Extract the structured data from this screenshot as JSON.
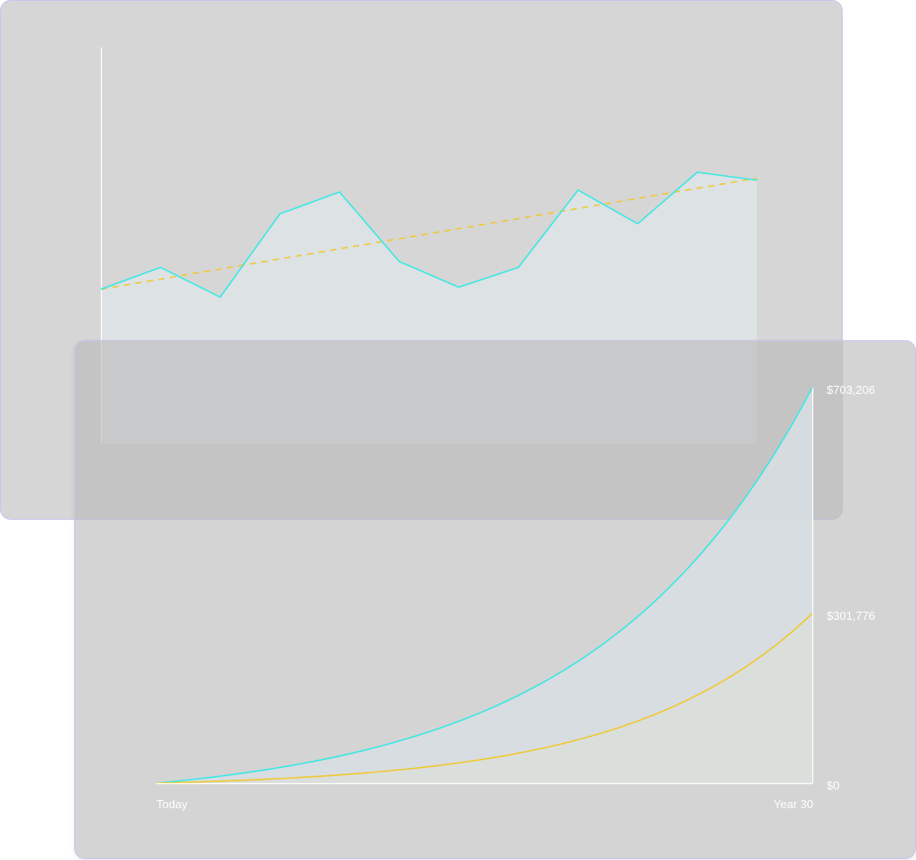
{
  "colors": {
    "background": "#ffffff",
    "card": "#d6d6d6",
    "card_border": "#c9c3ee",
    "teal": "#3ae8e4",
    "gold": "#f0c830",
    "axis": "#ffffff",
    "label": "#ffffff"
  },
  "chart_data": [
    {
      "type": "line",
      "title": "",
      "xlabel": "",
      "ylabel": "",
      "grid": false,
      "tick_labels": false,
      "series": [
        {
          "style": "solid",
          "color": "#3ae8e4",
          "fill": true,
          "x": [
            0,
            1,
            2,
            3,
            4,
            5,
            6,
            7,
            8,
            9,
            10,
            11
          ],
          "values": [
            78,
            89,
            74,
            116,
            127,
            92,
            79,
            89,
            128,
            111,
            137,
            133
          ]
        },
        {
          "style": "dashed",
          "color": "#f0c830",
          "fill": false,
          "x": [
            0,
            11
          ],
          "values": [
            78,
            134
          ]
        }
      ],
      "ylim": [
        0,
        200
      ]
    },
    {
      "type": "area",
      "title": "",
      "xlabel": "",
      "ylabel": "",
      "grid": false,
      "legend": "none",
      "x_tick_labels": [
        "Today",
        "Year 30"
      ],
      "y_tick_labels": [
        "$703,206",
        "$301,776",
        "$0"
      ],
      "y_ticks": [
        703206,
        301776,
        0
      ],
      "xlim": [
        0,
        30
      ],
      "ylim": [
        0,
        703206
      ],
      "series": [
        {
          "color": "#3ae8e4",
          "start": 0,
          "end": 703206,
          "growth": 3.0
        },
        {
          "color": "#f0c830",
          "start": 0,
          "end": 301776,
          "growth": 3.6
        }
      ]
    }
  ]
}
